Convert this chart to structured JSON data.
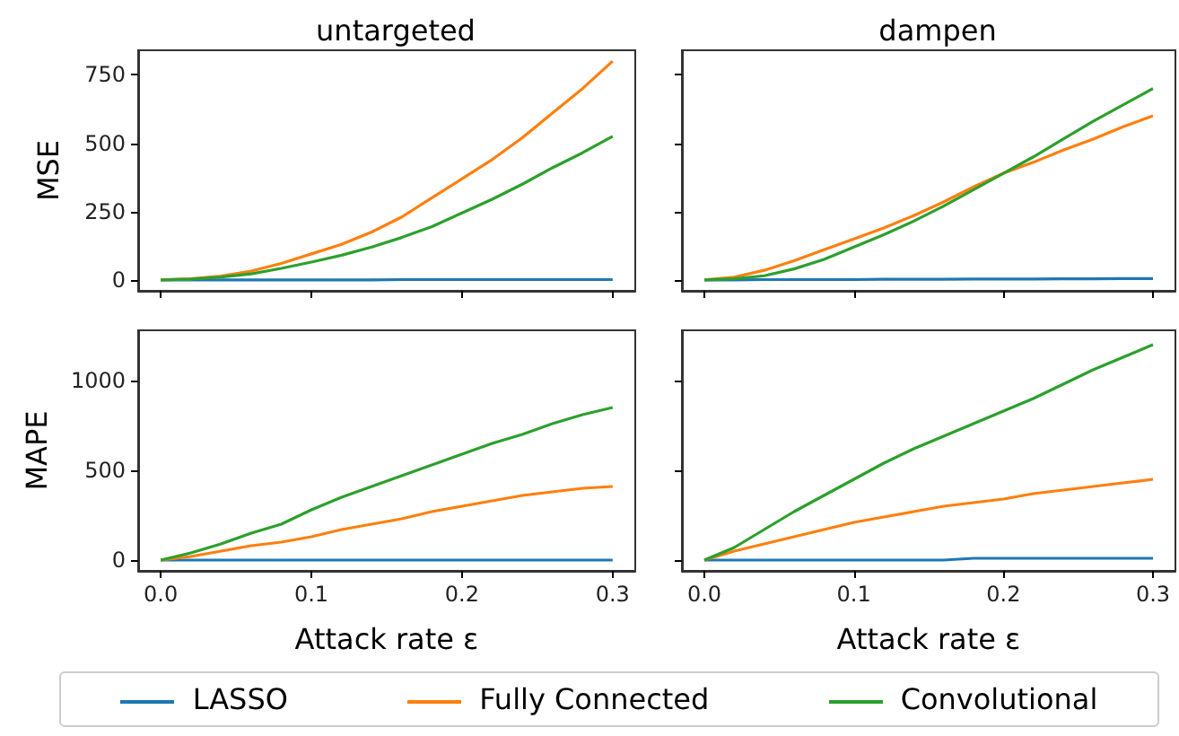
{
  "chart_data": [
    {
      "type": "line",
      "title": "untargeted",
      "ylabel": "MSE",
      "x": [
        0,
        0.02,
        0.04,
        0.06,
        0.08,
        0.1,
        0.12,
        0.14,
        0.16,
        0.18,
        0.2,
        0.22,
        0.24,
        0.26,
        0.28,
        0.3
      ],
      "xlim": [
        -0.015,
        0.315
      ],
      "xticks": [
        {
          "value": 0,
          "label": null
        },
        {
          "value": 0.1,
          "label": null
        },
        {
          "value": 0.2,
          "label": null
        },
        {
          "value": 0.3,
          "label": null
        }
      ],
      "ylim": [
        -40,
        840
      ],
      "yticks": [
        0,
        250,
        500,
        750
      ],
      "tick_labels": "y",
      "legend": "bottom",
      "series": [
        {
          "name": "LASSO",
          "color": "#1f77b4",
          "values": [
            0,
            0,
            0,
            0,
            0,
            0,
            0,
            0,
            1,
            1,
            1,
            1,
            1,
            1,
            1,
            1
          ]
        },
        {
          "name": "Fully Connected",
          "color": "#ff7f0e",
          "values": [
            0,
            4,
            14,
            32,
            60,
            95,
            130,
            175,
            230,
            300,
            370,
            440,
            520,
            610,
            700,
            800
          ]
        },
        {
          "name": "Convolutional",
          "color": "#2ca02c",
          "values": [
            0,
            3,
            10,
            22,
            42,
            65,
            90,
            120,
            155,
            195,
            245,
            295,
            350,
            410,
            465,
            525
          ]
        }
      ]
    },
    {
      "type": "line",
      "title": "dampen",
      "x": [
        0,
        0.02,
        0.04,
        0.06,
        0.08,
        0.1,
        0.12,
        0.14,
        0.16,
        0.18,
        0.2,
        0.22,
        0.24,
        0.26,
        0.28,
        0.3
      ],
      "xlim": [
        -0.015,
        0.315
      ],
      "xticks": [
        {
          "value": 0,
          "label": null
        },
        {
          "value": 0.1,
          "label": null
        },
        {
          "value": 0.2,
          "label": null
        },
        {
          "value": 0.3,
          "label": null
        }
      ],
      "ylim": [
        -40,
        840
      ],
      "yticks": [
        {
          "value": 0,
          "label": null
        },
        {
          "value": 250,
          "label": null
        },
        {
          "value": 500,
          "label": null
        },
        {
          "value": 750,
          "label": null
        }
      ],
      "tick_labels": false,
      "series": [
        {
          "color": "#1f77b4",
          "values": [
            0,
            0,
            1,
            1,
            1,
            1,
            2,
            2,
            2,
            3,
            3,
            3,
            4,
            4,
            5,
            5
          ]
        },
        {
          "color": "#ff7f0e",
          "values": [
            0,
            10,
            35,
            70,
            110,
            150,
            190,
            235,
            285,
            340,
            390,
            430,
            475,
            515,
            560,
            600
          ]
        },
        {
          "color": "#2ca02c",
          "values": [
            0,
            4,
            15,
            40,
            75,
            120,
            165,
            215,
            270,
            330,
            390,
            450,
            515,
            580,
            640,
            700
          ]
        }
      ]
    },
    {
      "type": "line",
      "ylabel": "MAPE",
      "xlabel": "Attack rate ε",
      "x": [
        0,
        0.02,
        0.04,
        0.06,
        0.08,
        0.1,
        0.12,
        0.14,
        0.16,
        0.18,
        0.2,
        0.22,
        0.24,
        0.26,
        0.28,
        0.3
      ],
      "xlim": [
        -0.015,
        0.315
      ],
      "xticks": [
        {
          "value": 0,
          "label": "0.0"
        },
        {
          "value": 0.1,
          "label": "0.1"
        },
        {
          "value": 0.2,
          "label": "0.2"
        },
        {
          "value": 0.3,
          "label": "0.3"
        }
      ],
      "ylim": [
        -60,
        1280
      ],
      "yticks": [
        0,
        500,
        1000
      ],
      "series": [
        {
          "color": "#1f77b4",
          "values": [
            0,
            0,
            0,
            0,
            0,
            0,
            0,
            0,
            0,
            0,
            0,
            0,
            0,
            0,
            0,
            0
          ]
        },
        {
          "color": "#ff7f0e",
          "values": [
            0,
            20,
            50,
            80,
            100,
            130,
            170,
            200,
            230,
            270,
            300,
            330,
            360,
            380,
            400,
            410
          ]
        },
        {
          "color": "#2ca02c",
          "values": [
            0,
            40,
            90,
            150,
            200,
            280,
            350,
            410,
            470,
            530,
            590,
            650,
            700,
            760,
            810,
            850
          ]
        }
      ]
    },
    {
      "type": "line",
      "xlabel": "Attack rate ε",
      "x": [
        0,
        0.02,
        0.04,
        0.06,
        0.08,
        0.1,
        0.12,
        0.14,
        0.16,
        0.18,
        0.2,
        0.22,
        0.24,
        0.26,
        0.28,
        0.3
      ],
      "xlim": [
        -0.015,
        0.315
      ],
      "xticks": [
        {
          "value": 0,
          "label": "0.0"
        },
        {
          "value": 0.1,
          "label": "0.1"
        },
        {
          "value": 0.2,
          "label": "0.2"
        },
        {
          "value": 0.3,
          "label": "0.3"
        }
      ],
      "ylim": [
        -60,
        1280
      ],
      "yticks": [
        {
          "value": 0,
          "label": null
        },
        {
          "value": 500,
          "label": null
        },
        {
          "value": 1000,
          "label": null
        }
      ],
      "tick_labels": "x",
      "series": [
        {
          "color": "#1f77b4",
          "values": [
            0,
            0,
            0,
            0,
            0,
            0,
            0,
            0,
            0,
            10,
            10,
            10,
            10,
            10,
            10,
            10
          ]
        },
        {
          "color": "#ff7f0e",
          "values": [
            0,
            50,
            90,
            130,
            170,
            210,
            240,
            270,
            300,
            320,
            340,
            370,
            390,
            410,
            430,
            450
          ]
        },
        {
          "color": "#2ca02c",
          "values": [
            0,
            70,
            170,
            270,
            360,
            450,
            540,
            620,
            690,
            760,
            830,
            900,
            980,
            1060,
            1130,
            1200
          ]
        }
      ]
    }
  ]
}
